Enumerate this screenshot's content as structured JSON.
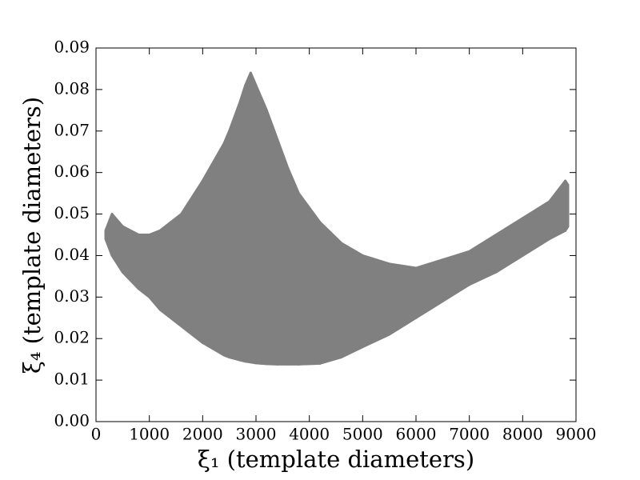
{
  "chart_data": {
    "type": "range_area",
    "xlabel": "ξ₁ (template diameters)",
    "ylabel": "ξ₄ (template diameters)",
    "xlim": [
      0,
      9000
    ],
    "xticks": [
      0,
      1000,
      2000,
      3000,
      4000,
      5000,
      6000,
      7000,
      8000,
      9000
    ],
    "ylim": [
      0,
      0.09
    ],
    "yticks": [
      {
        "value": 0,
        "label": "0.00"
      },
      0.01,
      0.02,
      0.03,
      0.04,
      0.05,
      0.06,
      0.07,
      0.08,
      0.09
    ],
    "color": "#808080",
    "x": [
      180,
      300,
      500,
      800,
      1000,
      1200,
      1600,
      2000,
      2400,
      2500,
      2700,
      2800,
      2900,
      3000,
      3100,
      3200,
      3400,
      3600,
      3800,
      4200,
      4600,
      5000,
      5500,
      6000,
      6500,
      7000,
      7500,
      8000,
      8500,
      8800,
      8850
    ],
    "upper": [
      0.046,
      0.05,
      0.047,
      0.045,
      0.045,
      0.046,
      0.05,
      0.058,
      0.067,
      0.07,
      0.077,
      0.081,
      0.084,
      0.081,
      0.078,
      0.075,
      0.068,
      0.061,
      0.055,
      0.048,
      0.043,
      0.04,
      0.038,
      0.037,
      0.039,
      0.041,
      0.045,
      0.049,
      0.053,
      0.058,
      0.057
    ],
    "lower": [
      0.044,
      0.04,
      0.036,
      0.032,
      0.03,
      0.027,
      0.023,
      0.019,
      0.016,
      0.0155,
      0.0148,
      0.0145,
      0.0143,
      0.0141,
      0.014,
      0.0139,
      0.0138,
      0.0138,
      0.0138,
      0.014,
      0.0155,
      0.018,
      0.021,
      0.025,
      0.029,
      0.033,
      0.036,
      0.04,
      0.044,
      0.046,
      0.047
    ]
  }
}
